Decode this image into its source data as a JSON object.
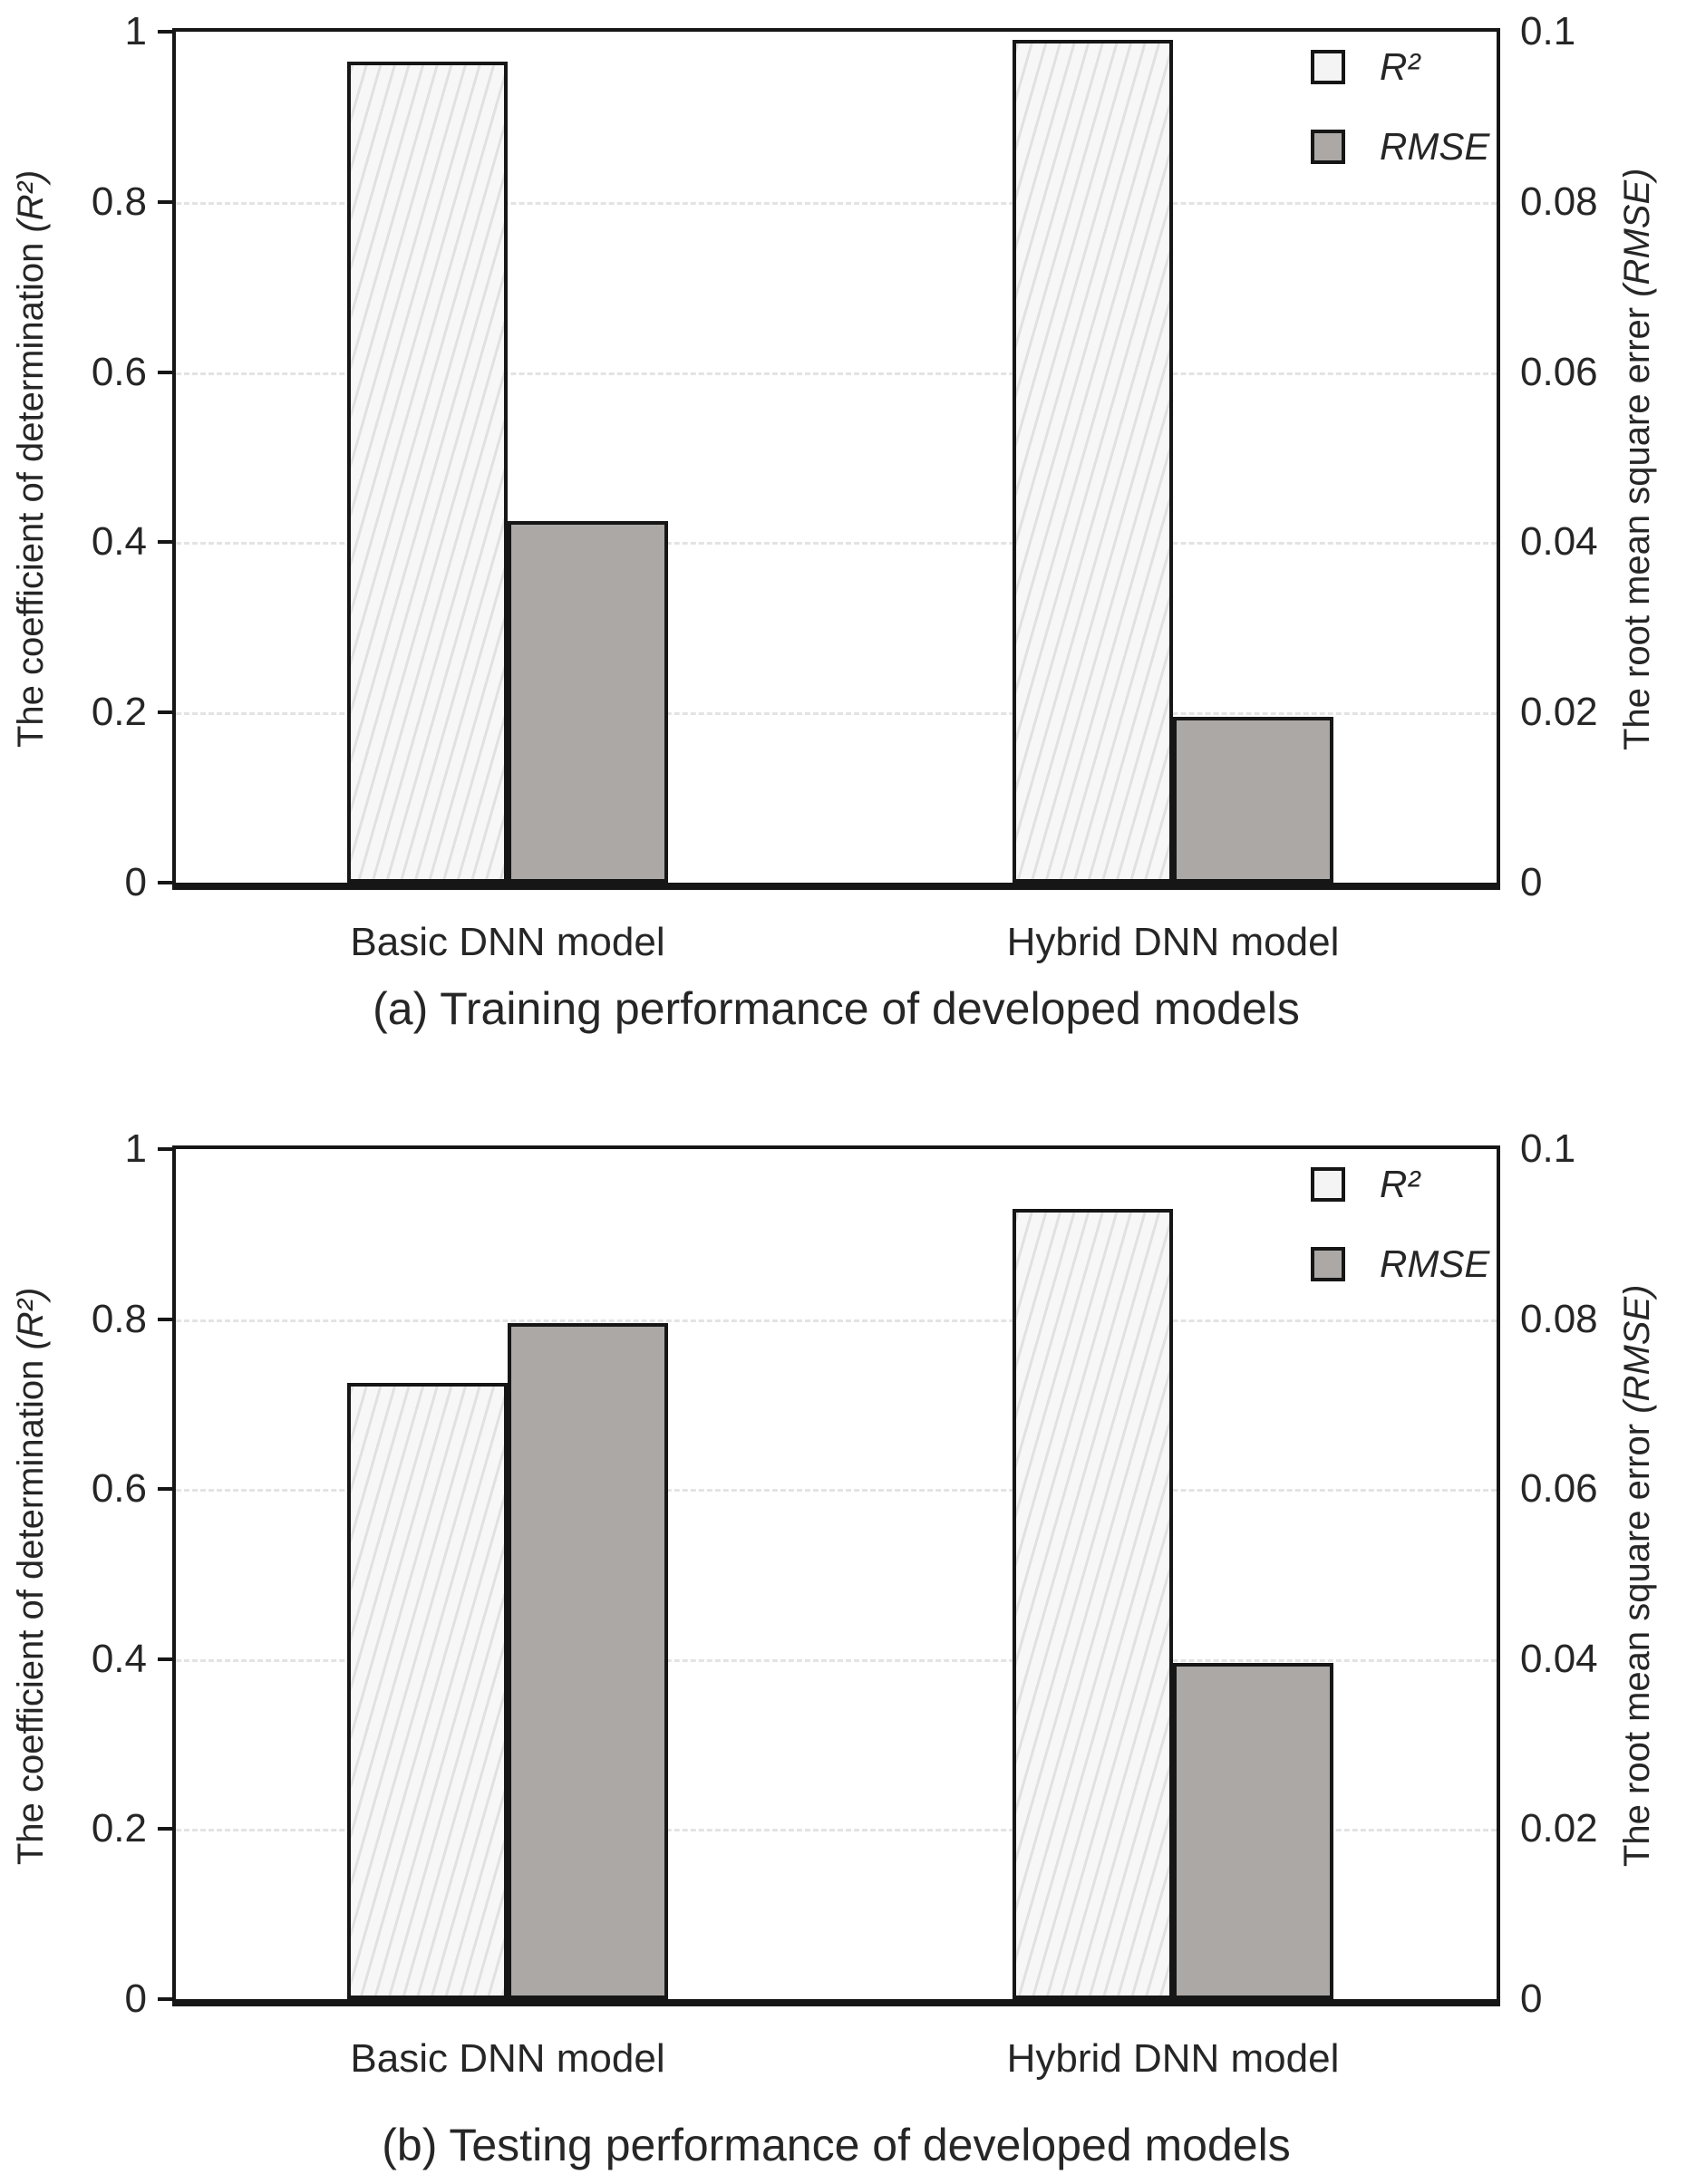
{
  "colors": {
    "background": "#ffffff",
    "axis_frame": "#161616",
    "bar_border": "#161616",
    "r2_bar_fill": "#f7f7f7",
    "r2_bar_hatch": "#e1e1e1",
    "rmse_bar_fill": "#aba8a6",
    "gridline": "#e3e3e3",
    "text": "#262626"
  },
  "charts": [
    {
      "caption": "(a) Training performance of developed models",
      "left_axis": {
        "label_prefix": "The coefficient of determination ",
        "label_math": "(R²)",
        "ticks": [
          "1",
          "0.8",
          "0.6",
          "0.4",
          "0.2",
          "0"
        ]
      },
      "right_axis": {
        "label_prefix": "The root mean square errer ",
        "label_math": "(RMSE)",
        "ticks": [
          "0.1",
          "0.08",
          "0.06",
          "0.04",
          "0.02",
          "0"
        ]
      }
    },
    {
      "caption": "(b) Testing performance of developed models",
      "left_axis": {
        "label_prefix": "The coefficient of determination ",
        "label_math": "(R²)",
        "ticks": [
          "1",
          "0.8",
          "0.6",
          "0.4",
          "0.2",
          "0"
        ]
      },
      "right_axis": {
        "label_prefix": "The root mean square error ",
        "label_math": "(RMSE)",
        "ticks": [
          "0.1",
          "0.08",
          "0.06",
          "0.04",
          "0.02",
          "0"
        ]
      }
    }
  ],
  "chart_data": [
    {
      "type": "bar",
      "title": "(a) Training performance of developed models",
      "categories": [
        "Basic DNN model",
        "Hybrid DNN model"
      ],
      "series": [
        {
          "name": "R²",
          "axis": "left",
          "values": [
            0.965,
            0.99
          ]
        },
        {
          "name": "RMSE",
          "axis": "right",
          "values": [
            0.0425,
            0.0195
          ]
        }
      ],
      "left_axis": {
        "label": "The coefficient of determination (R²)",
        "range": [
          0,
          1
        ],
        "tick_step": 0.2
      },
      "right_axis": {
        "label": "The root mean square errer (RMSE)",
        "range": [
          0,
          0.1
        ],
        "tick_step": 0.02
      },
      "grid": "horizontal-dashed",
      "legend_position": "top-right"
    },
    {
      "type": "bar",
      "title": "(b) Testing performance of developed models",
      "categories": [
        "Basic DNN model",
        "Hybrid DNN model"
      ],
      "series": [
        {
          "name": "R²",
          "axis": "left",
          "values": [
            0.725,
            0.93
          ]
        },
        {
          "name": "RMSE",
          "axis": "right",
          "values": [
            0.0795,
            0.0395
          ]
        }
      ],
      "left_axis": {
        "label": "The coefficient of determination (R²)",
        "range": [
          0,
          1
        ],
        "tick_step": 0.2
      },
      "right_axis": {
        "label": "The root mean square error (RMSE)",
        "range": [
          0,
          0.1
        ],
        "tick_step": 0.02
      },
      "grid": "horizontal-dashed",
      "legend_position": "top-right"
    }
  ]
}
